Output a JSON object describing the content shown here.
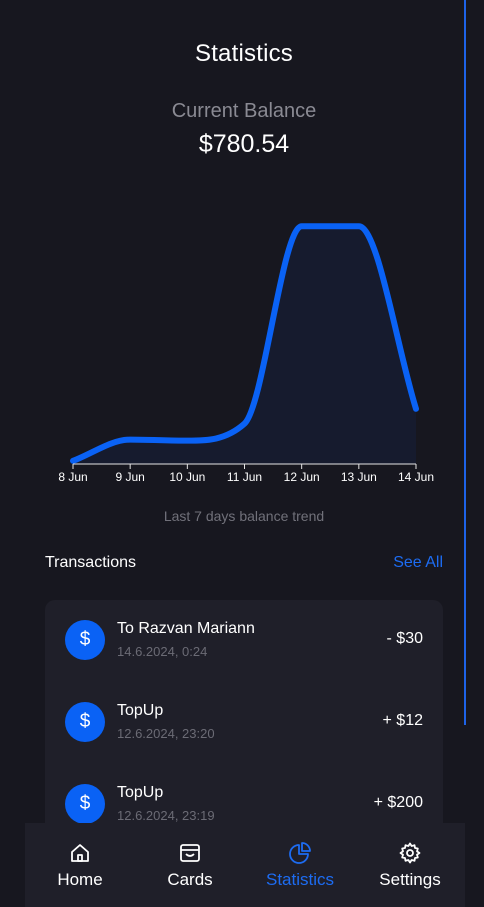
{
  "header": {
    "title": "Statistics"
  },
  "balance": {
    "label": "Current Balance",
    "value": "$780.54"
  },
  "chart_data": {
    "type": "area",
    "x": [
      "8 Jun",
      "9 Jun",
      "10 Jun",
      "11 Jun",
      "12 Jun",
      "13 Jun",
      "14 Jun"
    ],
    "series": [
      {
        "values": [
          15,
          115,
          110,
          190,
          1120,
          1120,
          260
        ]
      }
    ],
    "ylim": [
      0,
      1220
    ],
    "grid": false,
    "caption": "Last 7 days balance trend",
    "colors": {
      "line": "#0a62f5",
      "fill": "#161b2e"
    }
  },
  "transactions": {
    "title": "Transactions",
    "see_all": "See All",
    "items": [
      {
        "name": "To Razvan Mariann",
        "date": "14.6.2024, 0:24",
        "amount": "- $30",
        "icon": "dollar-icon"
      },
      {
        "name": "TopUp",
        "date": "12.6.2024, 23:20",
        "amount": "+ $12",
        "icon": "dollar-icon"
      },
      {
        "name": "TopUp",
        "date": "12.6.2024, 23:19",
        "amount": "+ $200",
        "icon": "dollar-icon"
      }
    ]
  },
  "nav": {
    "items": [
      {
        "label": "Home",
        "icon": "home-icon",
        "active": false
      },
      {
        "label": "Cards",
        "icon": "wallet-icon",
        "active": false
      },
      {
        "label": "Statistics",
        "icon": "pie-chart-icon",
        "active": true
      },
      {
        "label": "Settings",
        "icon": "gear-icon",
        "active": false
      }
    ],
    "active_color": "#1d6cf2"
  }
}
